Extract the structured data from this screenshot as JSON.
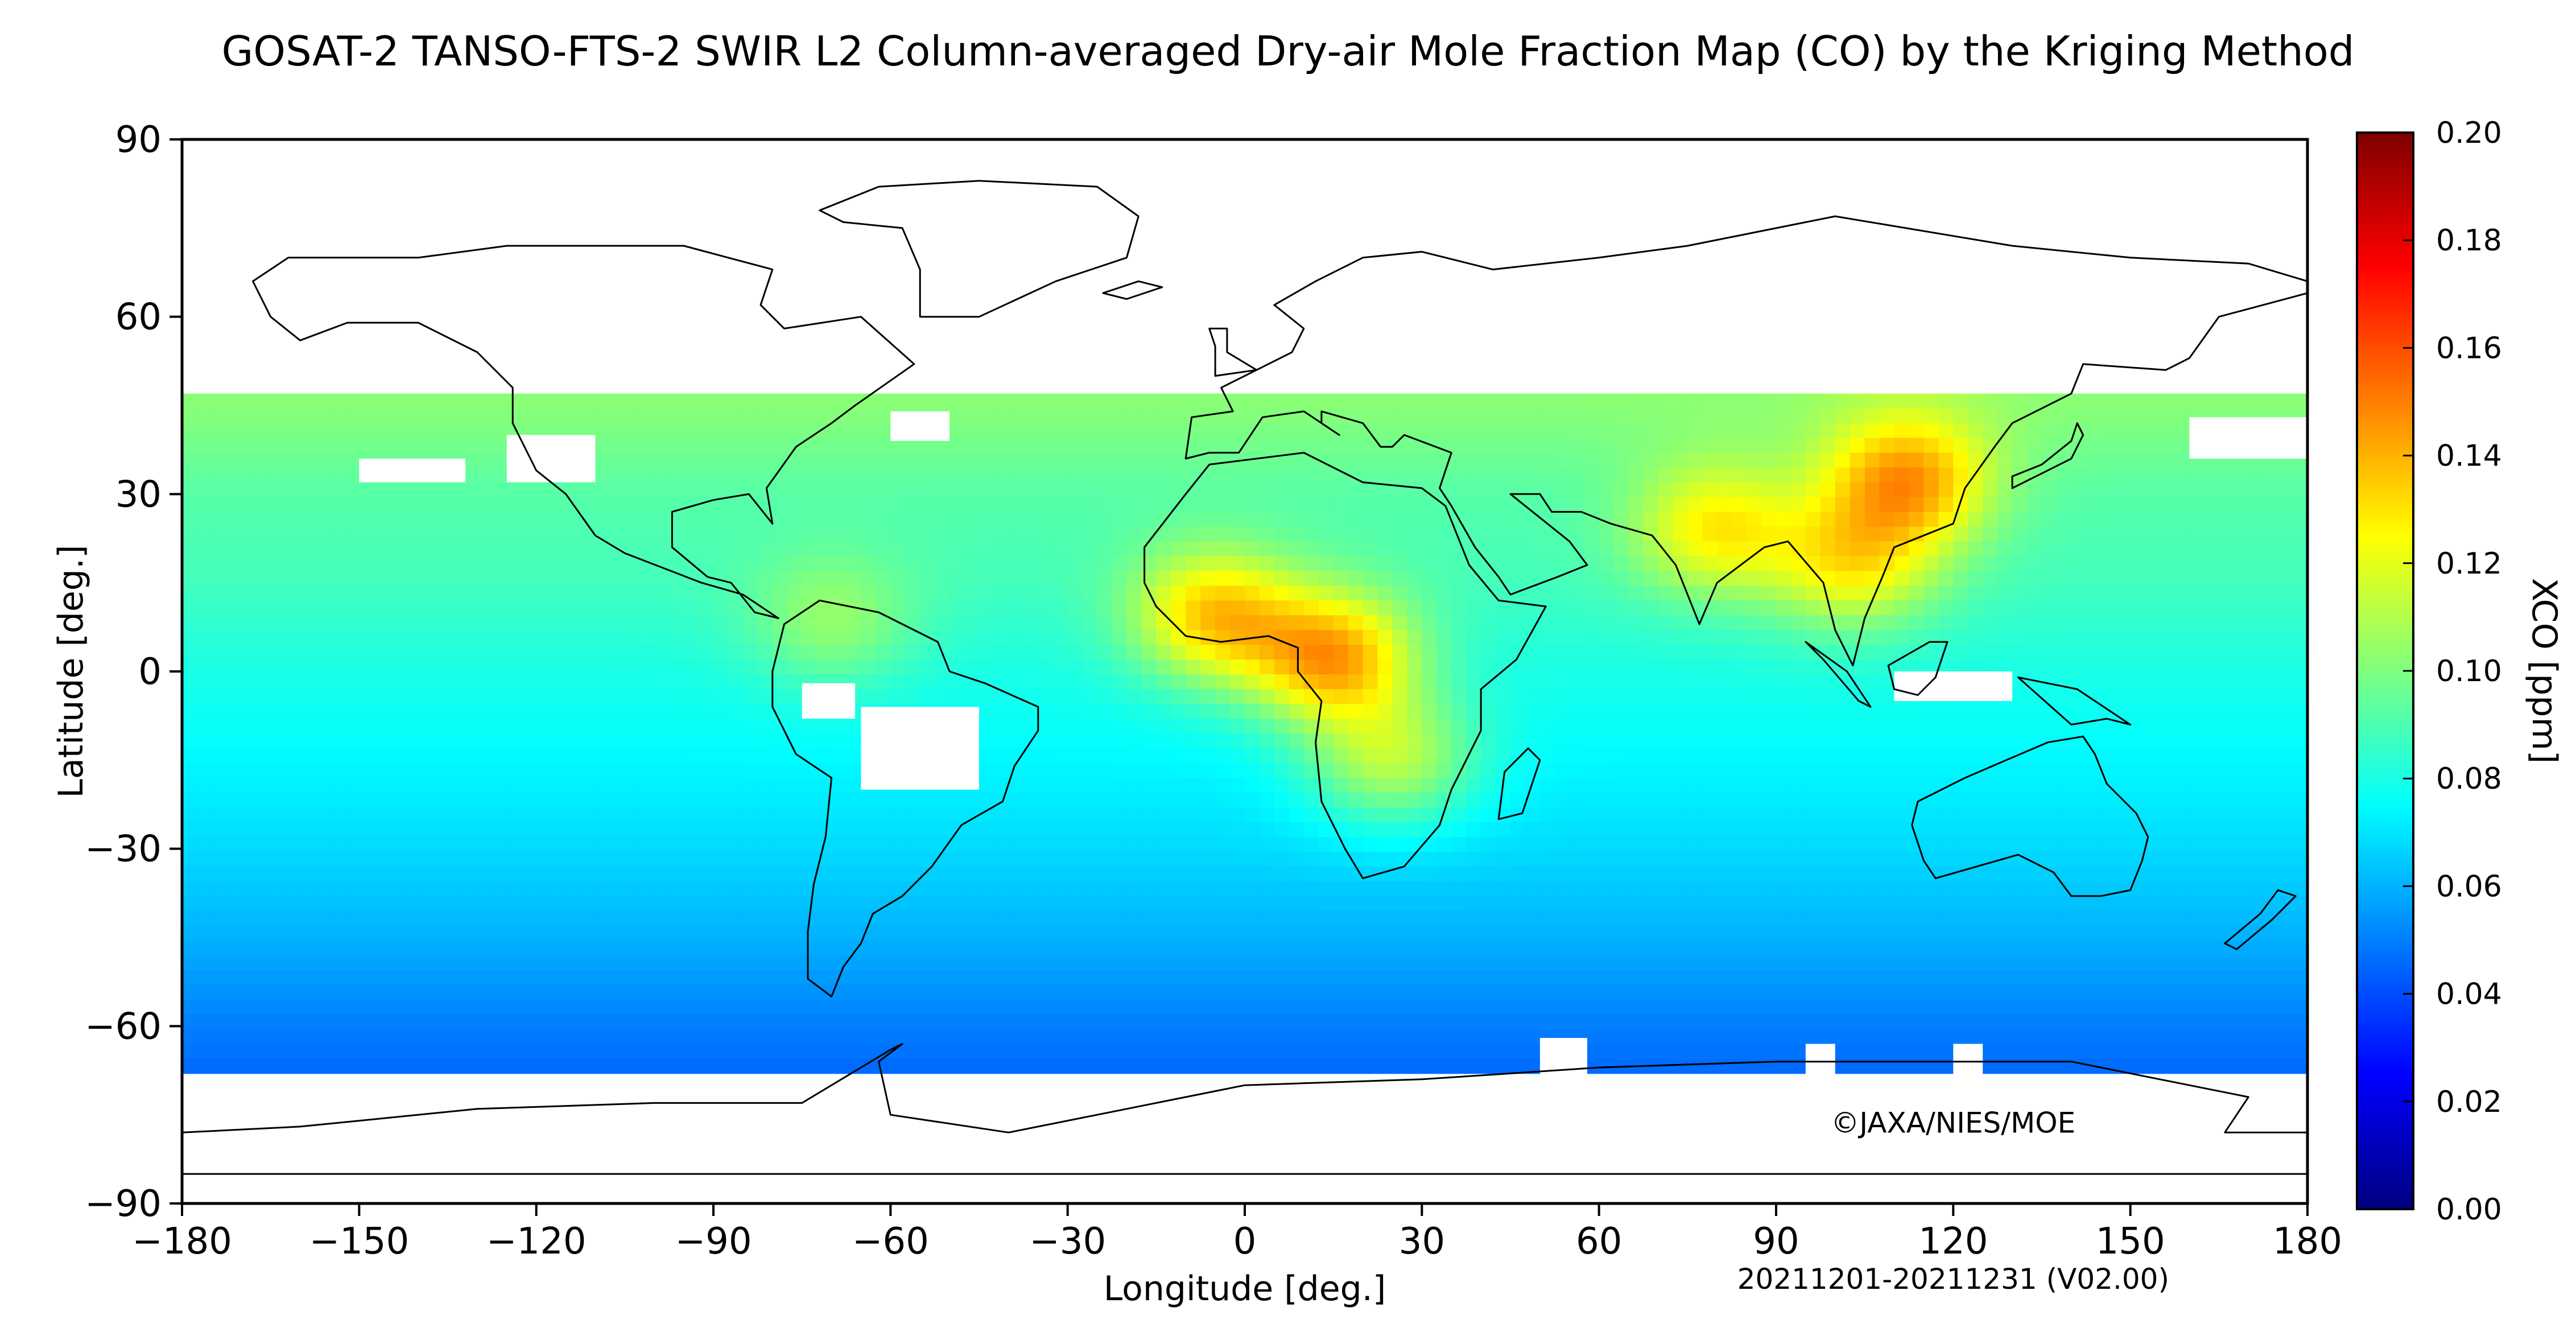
{
  "title": "GOSAT-2 TANSO-FTS-2 SWIR L2 Column-averaged Dry-air Mole Fraction Map (CO) by the Kriging Method",
  "copyright": "©JAXA/NIES/MOE",
  "period": "20211201-20211231 (V02.00)",
  "chart_data": {
    "type": "heatmap",
    "projection": "equirectangular",
    "xlabel": "Longitude [deg.]",
    "ylabel": "Latitude [deg.]",
    "xlim": [
      -180,
      180
    ],
    "ylim": [
      -90,
      90
    ],
    "xticks": [
      -180,
      -150,
      -120,
      -90,
      -60,
      -30,
      0,
      30,
      60,
      90,
      120,
      150,
      180
    ],
    "yticks": [
      90,
      60,
      30,
      0,
      -30,
      -60,
      -90
    ],
    "xtick_labels": [
      "−180",
      "−150",
      "−120",
      "−90",
      "−60",
      "−30",
      "0",
      "30",
      "60",
      "90",
      "120",
      "150",
      "180"
    ],
    "ytick_labels": [
      "90",
      "60",
      "30",
      "0",
      "−30",
      "−60",
      "−90"
    ],
    "data_coverage_lat": [
      -67,
      47
    ],
    "colorbar": {
      "label": "XCO [ppm]",
      "range": [
        0.0,
        0.2
      ],
      "ticks": [
        0.0,
        0.02,
        0.04,
        0.06,
        0.08,
        0.1,
        0.12,
        0.14,
        0.16,
        0.18,
        0.2
      ],
      "tick_labels": [
        "0.00",
        "0.02",
        "0.04",
        "0.06",
        "0.08",
        "0.10",
        "0.12",
        "0.14",
        "0.16",
        "0.18",
        "0.20"
      ],
      "colormap": "jet",
      "colors": [
        "#00007f",
        "#0000ff",
        "#007fff",
        "#00ffff",
        "#7fff7f",
        "#ffff00",
        "#ff7f00",
        "#ff0000",
        "#7f0000"
      ]
    },
    "background_field": [
      {
        "lat": 45,
        "value": 0.102
      },
      {
        "lat": 30,
        "value": 0.092
      },
      {
        "lat": 15,
        "value": 0.088
      },
      {
        "lat": 0,
        "value": 0.08
      },
      {
        "lat": -15,
        "value": 0.074
      },
      {
        "lat": -30,
        "value": 0.068
      },
      {
        "lat": -45,
        "value": 0.06
      },
      {
        "lat": -60,
        "value": 0.05
      },
      {
        "lat": -67,
        "value": 0.046
      }
    ],
    "hotspots": [
      {
        "region": "East China",
        "lon": 112,
        "lat": 32,
        "value": 0.145
      },
      {
        "region": "Central Africa",
        "lon": 15,
        "lat": 2,
        "value": 0.142
      },
      {
        "region": "West Africa",
        "lon": -5,
        "lat": 9,
        "value": 0.135
      },
      {
        "region": "India",
        "lon": 80,
        "lat": 24,
        "value": 0.128
      },
      {
        "region": "Indochina",
        "lon": 103,
        "lat": 18,
        "value": 0.125
      },
      {
        "region": "Southern Africa",
        "lon": 25,
        "lat": -15,
        "value": 0.11
      },
      {
        "region": "Northern Andes",
        "lon": -70,
        "lat": 8,
        "value": 0.104
      }
    ],
    "missing_data_regions": [
      {
        "lon": [
          -150,
          -132
        ],
        "lat": [
          32,
          36
        ]
      },
      {
        "lon": [
          -125,
          -110
        ],
        "lat": [
          32,
          40
        ]
      },
      {
        "lon": [
          -65,
          -45
        ],
        "lat": [
          -20,
          -6
        ]
      },
      {
        "lon": [
          -75,
          -66
        ],
        "lat": [
          -8,
          -2
        ]
      },
      {
        "lon": [
          110,
          130
        ],
        "lat": [
          -5,
          0
        ]
      },
      {
        "lon": [
          -60,
          -50
        ],
        "lat": [
          39,
          44
        ]
      },
      {
        "lon": [
          160,
          180
        ],
        "lat": [
          36,
          43
        ]
      },
      {
        "lon": [
          50,
          58
        ],
        "lat": [
          -80,
          -62
        ]
      },
      {
        "lon": [
          95,
          100
        ],
        "lat": [
          -70,
          -63
        ]
      },
      {
        "lon": [
          120,
          125
        ],
        "lat": [
          -70,
          -63
        ]
      }
    ]
  }
}
